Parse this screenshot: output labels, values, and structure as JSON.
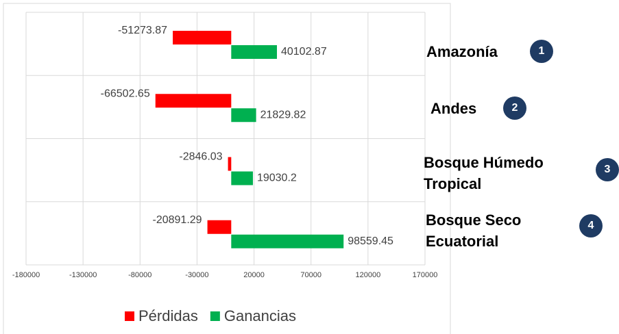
{
  "chart_data": {
    "type": "hbar",
    "categories": [
      "Amazonía",
      "Andes",
      "Bosque Húmedo Tropical",
      "Bosque Seco Ecuatorial"
    ],
    "category_numbers": [
      "1",
      "2",
      "3",
      "4"
    ],
    "series": [
      {
        "name": "Pérdidas",
        "color": "#ff0000",
        "values": [
          -51273.87,
          -66502.65,
          -2846.03,
          -20891.29
        ]
      },
      {
        "name": "Ganancias",
        "color": "#00b050",
        "values": [
          40102.87,
          21829.82,
          19030.2,
          98559.45
        ]
      }
    ],
    "xlim": [
      -180000,
      170000
    ],
    "xticks": [
      -180000,
      -130000,
      -80000,
      -30000,
      20000,
      70000,
      120000,
      170000
    ],
    "grid": true,
    "legend": "bottom"
  }
}
